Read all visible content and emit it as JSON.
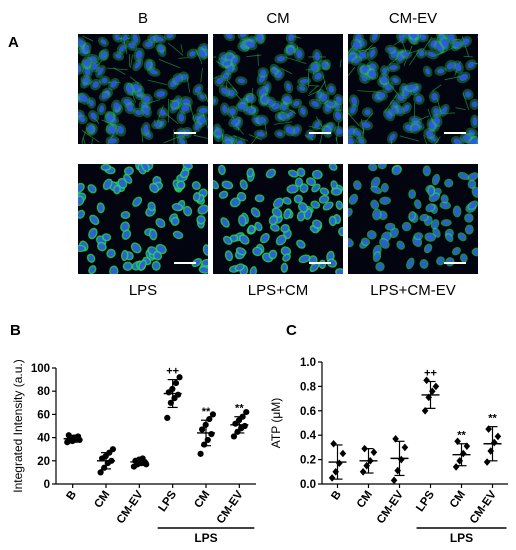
{
  "panel_labels": {
    "a": "A",
    "b": "B",
    "c": "C"
  },
  "panel_a": {
    "top_labels": [
      "B",
      "CM",
      "CM-EV"
    ],
    "bottom_labels": [
      "LPS",
      "LPS+CM",
      "LPS+CM-EV"
    ],
    "image_style": [
      {
        "style": "dense-fibers"
      },
      {
        "style": "dense-fibers"
      },
      {
        "style": "dense-fibers"
      },
      {
        "style": "bright-nuclei"
      },
      {
        "style": "bright-nuclei"
      },
      {
        "style": "sparse-nuclei"
      }
    ],
    "colors": {
      "background": "#020510",
      "nuclei": "#2f55e6",
      "stain": "#27d35a",
      "scalebar": "#ffffff"
    }
  },
  "chart_data": [
    {
      "type": "scatter",
      "title": "",
      "ylabel": "Integrated Intensity (a.u.)",
      "ylim": [
        0,
        100
      ],
      "yticks": [
        0,
        20,
        40,
        60,
        80,
        100
      ],
      "categories": [
        "B",
        "CM",
        "CM-EV",
        "LPS",
        "CM",
        "CM-EV"
      ],
      "group_label": "LPS",
      "group_span": [
        3,
        5
      ],
      "mean": [
        39,
        20,
        19,
        78,
        44,
        51
      ],
      "sd": [
        3,
        7,
        3,
        12,
        11,
        7
      ],
      "points": [
        [
          36,
          38,
          40,
          41,
          42,
          37,
          39,
          38
        ],
        [
          10,
          14,
          18,
          20,
          22,
          24,
          27,
          30
        ],
        [
          15,
          17,
          18,
          19,
          20,
          21,
          22,
          17
        ],
        [
          57,
          70,
          74,
          77,
          79,
          82,
          87,
          92
        ],
        [
          26,
          34,
          38,
          43,
          47,
          51,
          56,
          60
        ],
        [
          41,
          45,
          48,
          50,
          52,
          55,
          58,
          62
        ]
      ],
      "annotations": [
        "",
        "",
        "",
        "++",
        "**",
        "**"
      ],
      "marker": "circle"
    },
    {
      "type": "scatter",
      "title": "",
      "ylabel": "ATP (μM)",
      "ylim": [
        0,
        1.0
      ],
      "yticks": [
        0.0,
        0.2,
        0.4,
        0.6,
        0.8,
        1.0
      ],
      "categories": [
        "B",
        "CM",
        "CM-EV",
        "LPS",
        "CM",
        "CM-EV"
      ],
      "group_label": "LPS",
      "group_span": [
        3,
        5
      ],
      "mean": [
        0.18,
        0.19,
        0.21,
        0.73,
        0.24,
        0.33
      ],
      "sd": [
        0.14,
        0.1,
        0.14,
        0.11,
        0.09,
        0.14
      ],
      "points": [
        [
          0.05,
          0.1,
          0.17,
          0.25,
          0.33
        ],
        [
          0.1,
          0.15,
          0.19,
          0.26,
          0.29
        ],
        [
          0.03,
          0.11,
          0.2,
          0.3,
          0.37
        ],
        [
          0.6,
          0.71,
          0.76,
          0.8,
          0.85
        ],
        [
          0.14,
          0.19,
          0.25,
          0.31,
          0.35
        ],
        [
          0.18,
          0.27,
          0.34,
          0.39,
          0.45
        ]
      ],
      "annotations": [
        "",
        "",
        "",
        "++",
        "**",
        "**"
      ],
      "marker": "diamond"
    }
  ]
}
